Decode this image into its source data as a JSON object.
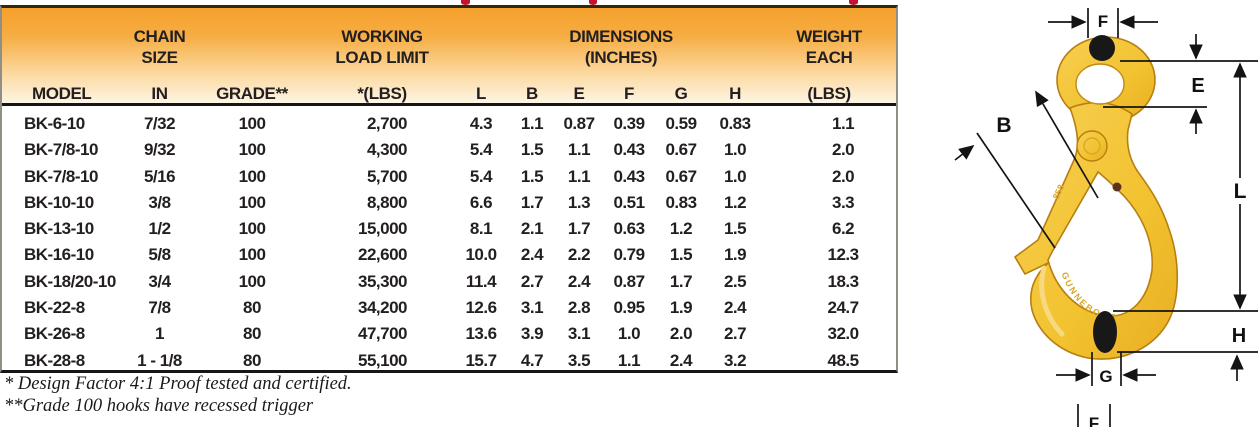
{
  "page": {
    "cropped_title_color": "#c41230"
  },
  "table": {
    "header": {
      "group_chain": "CHAIN\nSIZE",
      "group_wll": "WORKING\nLOAD LIMIT",
      "group_dimensions": "DIMENSIONS\n(INCHES)",
      "group_weight": "WEIGHT\nEACH",
      "model": "MODEL",
      "chain_unit": "IN",
      "grade": "GRADE**",
      "wll_unit": "*(LBS)",
      "dim_l": "L",
      "dim_b": "B",
      "dim_e": "E",
      "dim_f": "F",
      "dim_g": "G",
      "dim_h": "H",
      "weight_unit": "(LBS)"
    },
    "row_keys": [
      "model",
      "size",
      "grade",
      "wll",
      "L",
      "B",
      "E",
      "F",
      "G",
      "H",
      "wt"
    ],
    "rows": [
      {
        "model": "BK-6-10",
        "size": "7/32",
        "grade": "100",
        "wll": "2,700",
        "L": "4.3",
        "B": "1.1",
        "E": "0.87",
        "F": "0.39",
        "G": "0.59",
        "H": "0.83",
        "wt": "1.1"
      },
      {
        "model": "BK-7/8-10",
        "size": "9/32",
        "grade": "100",
        "wll": "4,300",
        "L": "5.4",
        "B": "1.5",
        "E": "1.1",
        "F": "0.43",
        "G": "0.67",
        "H": "1.0",
        "wt": "2.0"
      },
      {
        "model": "BK-7/8-10",
        "size": "5/16",
        "grade": "100",
        "wll": "5,700",
        "L": "5.4",
        "B": "1.5",
        "E": "1.1",
        "F": "0.43",
        "G": "0.67",
        "H": "1.0",
        "wt": "2.0"
      },
      {
        "model": "BK-10-10",
        "size": "3/8",
        "grade": "100",
        "wll": "8,800",
        "L": "6.6",
        "B": "1.7",
        "E": "1.3",
        "F": "0.51",
        "G": "0.83",
        "H": "1.2",
        "wt": "3.3"
      },
      {
        "model": "BK-13-10",
        "size": "1/2",
        "grade": "100",
        "wll": "15,000",
        "L": "8.1",
        "B": "2.1",
        "E": "1.7",
        "F": "0.63",
        "G": "1.2",
        "H": "1.5",
        "wt": "6.2"
      },
      {
        "model": "BK-16-10",
        "size": "5/8",
        "grade": "100",
        "wll": "22,600",
        "L": "10.0",
        "B": "2.4",
        "E": "2.2",
        "F": "0.79",
        "G": "1.5",
        "H": "1.9",
        "wt": "12.3"
      },
      {
        "model": "BK-18/20-10",
        "size": "3/4",
        "grade": "100",
        "wll": "35,300",
        "L": "11.4",
        "B": "2.7",
        "E": "2.4",
        "F": "0.87",
        "G": "1.7",
        "H": "2.5",
        "wt": "18.3"
      },
      {
        "model": "BK-22-8",
        "size": "7/8",
        "grade": "80",
        "wll": "34,200",
        "L": "12.6",
        "B": "3.1",
        "E": "2.8",
        "F": "0.95",
        "G": "1.9",
        "H": "2.4",
        "wt": "24.7"
      },
      {
        "model": "BK-26-8",
        "size": "1",
        "grade": "80",
        "wll": "47,700",
        "L": "13.6",
        "B": "3.9",
        "E": "3.1",
        "F": "1.0",
        "G": "2.0",
        "H": "2.7",
        "wt": "32.0"
      },
      {
        "model": "BK-28-8",
        "size": "1 - 1/8",
        "grade": "80",
        "wll": "55,100",
        "L": "15.7",
        "B": "4.7",
        "E": "3.5",
        "F": "1.1",
        "G": "2.4",
        "H": "3.2",
        "wt": "48.5"
      }
    ],
    "footnote1": "* Design Factor 4:1 Proof tested and certified.",
    "footnote2": "**Grade 100 hooks have recessed trigger"
  },
  "diagram": {
    "hook_color": "#f2c230",
    "dimension_labels": {
      "top_width": "F",
      "eye_height": "E",
      "opening": "B",
      "overall_length": "L",
      "bowl_section_height": "H",
      "bowl_width": "G",
      "bottom_cropped": "F"
    },
    "marking_bowl": "GUNNEBO 10",
    "marking_shank": "858"
  }
}
